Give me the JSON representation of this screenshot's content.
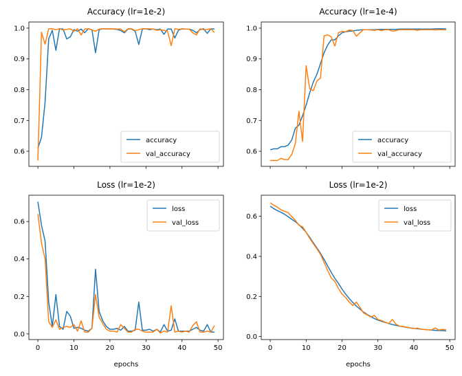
{
  "figure": {
    "colors": {
      "series1": "#1f77b4",
      "series2": "#ff7f0e",
      "legend_border": "#cccccc"
    }
  },
  "chart_data": [
    {
      "type": "line",
      "title": "Accuracy (lr=1e-2)",
      "xlabel": "",
      "ylabel": "",
      "xlim": [
        -2.5,
        51.5
      ],
      "ylim": [
        0.551,
        1.02
      ],
      "xticks": [
        0,
        10,
        20,
        30,
        40,
        50
      ],
      "xtick_labels": [
        "",
        "",
        "",
        "",
        "",
        ""
      ],
      "yticks": [
        0.6,
        0.7,
        0.8,
        0.9,
        1.0
      ],
      "ytick_labels": [
        "0.6",
        "0.7",
        "0.8",
        "0.9",
        "1.0"
      ],
      "grid": false,
      "legend": "lower-right",
      "series": [
        {
          "name": "accuracy",
          "values": [
            0.61,
            0.645,
            0.76,
            0.965,
            0.993,
            0.928,
            0.998,
            0.997,
            0.965,
            0.972,
            0.995,
            0.99,
            0.997,
            0.985,
            0.998,
            0.995,
            0.92,
            0.995,
            0.998,
            0.997,
            0.998,
            0.997,
            0.996,
            0.992,
            0.985,
            0.997,
            0.997,
            0.99,
            0.947,
            0.997,
            0.998,
            0.995,
            0.997,
            0.995,
            0.997,
            0.98,
            0.997,
            0.997,
            0.968,
            0.993,
            0.998,
            0.997,
            0.997,
            0.993,
            0.985,
            0.995,
            0.998,
            0.983,
            0.998,
            0.997
          ]
        },
        {
          "name": "val_accuracy",
          "values": [
            0.57,
            0.987,
            0.948,
            0.998,
            0.998,
            0.995,
            0.998,
            0.994,
            0.996,
            0.998,
            0.99,
            0.998,
            0.978,
            0.997,
            0.998,
            0.994,
            0.99,
            0.997,
            0.998,
            0.998,
            0.997,
            0.998,
            0.997,
            0.997,
            0.988,
            0.998,
            0.998,
            0.992,
            0.995,
            0.998,
            0.998,
            0.998,
            0.997,
            0.993,
            0.995,
            0.993,
            0.99,
            0.943,
            0.998,
            0.996,
            0.998,
            0.997,
            0.997,
            0.985,
            0.978,
            0.998,
            0.995,
            0.996,
            0.998,
            0.986
          ]
        }
      ]
    },
    {
      "type": "line",
      "title": "Accuracy (lr=1e-4)",
      "xlabel": "",
      "ylabel": "",
      "xlim": [
        -2.5,
        51.5
      ],
      "ylim": [
        0.551,
        1.02
      ],
      "xticks": [
        0,
        10,
        20,
        30,
        40,
        50
      ],
      "xtick_labels": [
        "",
        "",
        "",
        "",
        "",
        ""
      ],
      "yticks": [
        0.6,
        0.7,
        0.8,
        0.9,
        1.0
      ],
      "ytick_labels": [
        "0.6",
        "0.7",
        "0.8",
        "0.9",
        "1.0"
      ],
      "grid": false,
      "legend": "lower-right",
      "series": [
        {
          "name": "accuracy",
          "values": [
            0.605,
            0.608,
            0.608,
            0.615,
            0.615,
            0.62,
            0.637,
            0.675,
            0.685,
            0.715,
            0.75,
            0.79,
            0.825,
            0.85,
            0.885,
            0.92,
            0.945,
            0.962,
            0.962,
            0.975,
            0.985,
            0.988,
            0.99,
            0.991,
            0.993,
            0.994,
            0.995,
            0.995,
            0.995,
            0.995,
            0.996,
            0.996,
            0.996,
            0.996,
            0.996,
            0.996,
            0.997,
            0.997,
            0.997,
            0.997,
            0.997,
            0.997,
            0.997,
            0.997,
            0.997,
            0.997,
            0.998,
            0.998,
            0.998,
            0.998
          ]
        },
        {
          "name": "val_accuracy",
          "values": [
            0.57,
            0.57,
            0.57,
            0.577,
            0.573,
            0.573,
            0.59,
            0.625,
            0.73,
            0.632,
            0.878,
            0.803,
            0.797,
            0.828,
            0.838,
            0.975,
            0.978,
            0.972,
            0.942,
            0.985,
            0.99,
            0.988,
            0.994,
            0.992,
            0.974,
            0.985,
            0.995,
            0.995,
            0.994,
            0.993,
            0.995,
            0.992,
            0.995,
            0.995,
            0.99,
            0.992,
            0.995,
            0.995,
            0.995,
            0.995,
            0.995,
            0.993,
            0.995,
            0.995,
            0.995,
            0.995,
            0.994,
            0.995,
            0.995,
            0.994
          ]
        }
      ]
    },
    {
      "type": "line",
      "title": "Loss (lr=1e-2)",
      "xlabel": "epochs",
      "ylabel": "",
      "xlim": [
        -2.5,
        51.5
      ],
      "ylim": [
        -0.03,
        0.74
      ],
      "xticks": [
        0,
        10,
        20,
        30,
        40,
        50
      ],
      "xtick_labels": [
        "0",
        "10",
        "20",
        "30",
        "40",
        "50"
      ],
      "yticks": [
        0.0,
        0.2,
        0.4,
        0.6
      ],
      "ytick_labels": [
        "0.0",
        "0.2",
        "0.4",
        "0.6"
      ],
      "grid": false,
      "legend": "upper-right",
      "series": [
        {
          "name": "loss",
          "values": [
            0.705,
            0.58,
            0.495,
            0.17,
            0.04,
            0.21,
            0.04,
            0.025,
            0.12,
            0.095,
            0.03,
            0.035,
            0.03,
            0.02,
            0.015,
            0.03,
            0.345,
            0.12,
            0.07,
            0.04,
            0.025,
            0.025,
            0.03,
            0.02,
            0.04,
            0.015,
            0.015,
            0.02,
            0.17,
            0.02,
            0.02,
            0.025,
            0.015,
            0.025,
            0.01,
            0.05,
            0.015,
            0.02,
            0.08,
            0.015,
            0.015,
            0.015,
            0.015,
            0.025,
            0.035,
            0.02,
            0.015,
            0.05,
            0.01,
            0.01
          ]
        },
        {
          "name": "val_loss",
          "values": [
            0.64,
            0.485,
            0.4,
            0.065,
            0.035,
            0.075,
            0.025,
            0.035,
            0.04,
            0.035,
            0.05,
            0.015,
            0.07,
            0.01,
            0.01,
            0.03,
            0.21,
            0.09,
            0.055,
            0.025,
            0.015,
            0.015,
            0.01,
            0.05,
            0.03,
            0.01,
            0.01,
            0.025,
            0.025,
            0.015,
            0.01,
            0.01,
            0.01,
            0.025,
            0.005,
            0.015,
            0.01,
            0.15,
            0.01,
            0.015,
            0.01,
            0.015,
            0.01,
            0.045,
            0.065,
            0.01,
            0.01,
            0.015,
            0.01,
            0.045
          ]
        }
      ]
    },
    {
      "type": "line",
      "title": "Loss (lr=1e-2)",
      "xlabel": "epochs",
      "ylabel": "",
      "xlim": [
        -2.5,
        51.5
      ],
      "ylim": [
        -0.015,
        0.705
      ],
      "xticks": [
        0,
        10,
        20,
        30,
        40,
        50
      ],
      "xtick_labels": [
        "0",
        "10",
        "20",
        "30",
        "40",
        "50"
      ],
      "yticks": [
        0.0,
        0.2,
        0.4,
        0.6
      ],
      "ytick_labels": [
        "0.0",
        "0.2",
        "0.4",
        "0.6"
      ],
      "grid": false,
      "legend": "upper-right",
      "series": [
        {
          "name": "loss",
          "values": [
            0.65,
            0.638,
            0.628,
            0.62,
            0.61,
            0.598,
            0.585,
            0.573,
            0.558,
            0.54,
            0.52,
            0.495,
            0.468,
            0.442,
            0.415,
            0.385,
            0.352,
            0.32,
            0.29,
            0.265,
            0.237,
            0.212,
            0.19,
            0.17,
            0.152,
            0.137,
            0.122,
            0.11,
            0.1,
            0.09,
            0.082,
            0.076,
            0.07,
            0.065,
            0.06,
            0.056,
            0.052,
            0.049,
            0.046,
            0.043,
            0.041,
            0.039,
            0.037,
            0.035,
            0.034,
            0.032,
            0.031,
            0.03,
            0.03,
            0.028
          ]
        },
        {
          "name": "val_loss",
          "values": [
            0.667,
            0.655,
            0.645,
            0.632,
            0.625,
            0.618,
            0.598,
            0.58,
            0.555,
            0.548,
            0.52,
            0.49,
            0.463,
            0.438,
            0.41,
            0.37,
            0.33,
            0.292,
            0.275,
            0.24,
            0.212,
            0.195,
            0.172,
            0.155,
            0.172,
            0.145,
            0.118,
            0.108,
            0.098,
            0.105,
            0.085,
            0.08,
            0.072,
            0.065,
            0.085,
            0.062,
            0.052,
            0.05,
            0.047,
            0.043,
            0.04,
            0.042,
            0.037,
            0.035,
            0.034,
            0.033,
            0.043,
            0.032,
            0.036,
            0.034
          ]
        }
      ]
    }
  ]
}
